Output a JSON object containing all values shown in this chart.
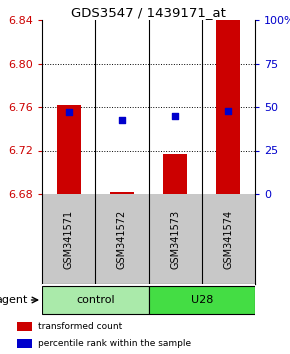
{
  "title": "GDS3547 / 1439171_at",
  "samples": [
    "GSM341571",
    "GSM341572",
    "GSM341573",
    "GSM341574"
  ],
  "bar_values": [
    6.762,
    6.682,
    6.717,
    6.84
  ],
  "bar_baseline": 6.68,
  "blue_values": [
    6.755,
    6.748,
    6.752,
    6.756
  ],
  "ylim_left": [
    6.68,
    6.84
  ],
  "ylim_right": [
    0,
    100
  ],
  "yticks_left": [
    6.68,
    6.72,
    6.76,
    6.8,
    6.84
  ],
  "yticks_left_labels": [
    "6.68",
    "6.72",
    "6.76",
    "6.80",
    "6.84"
  ],
  "yticks_right": [
    0,
    25,
    50,
    75,
    100
  ],
  "yticks_right_labels": [
    "0",
    "25",
    "50",
    "75",
    "100%"
  ],
  "bar_color": "#cc0000",
  "blue_color": "#0000cc",
  "bar_width": 0.45,
  "groups": [
    {
      "label": "control",
      "samples": [
        0,
        1
      ],
      "color": "#aaeaaa"
    },
    {
      "label": "U28",
      "samples": [
        2,
        3
      ],
      "color": "#44dd44"
    }
  ],
  "agent_label": "agent",
  "legend_items": [
    {
      "color": "#cc0000",
      "label": "transformed count"
    },
    {
      "color": "#0000cc",
      "label": "percentile rank within the sample"
    }
  ],
  "title_color": "#000000",
  "left_axis_color": "#cc0000",
  "right_axis_color": "#0000cc",
  "background_color": "#ffffff",
  "plot_bg_color": "#ffffff",
  "label_bg_color": "#c8c8c8"
}
